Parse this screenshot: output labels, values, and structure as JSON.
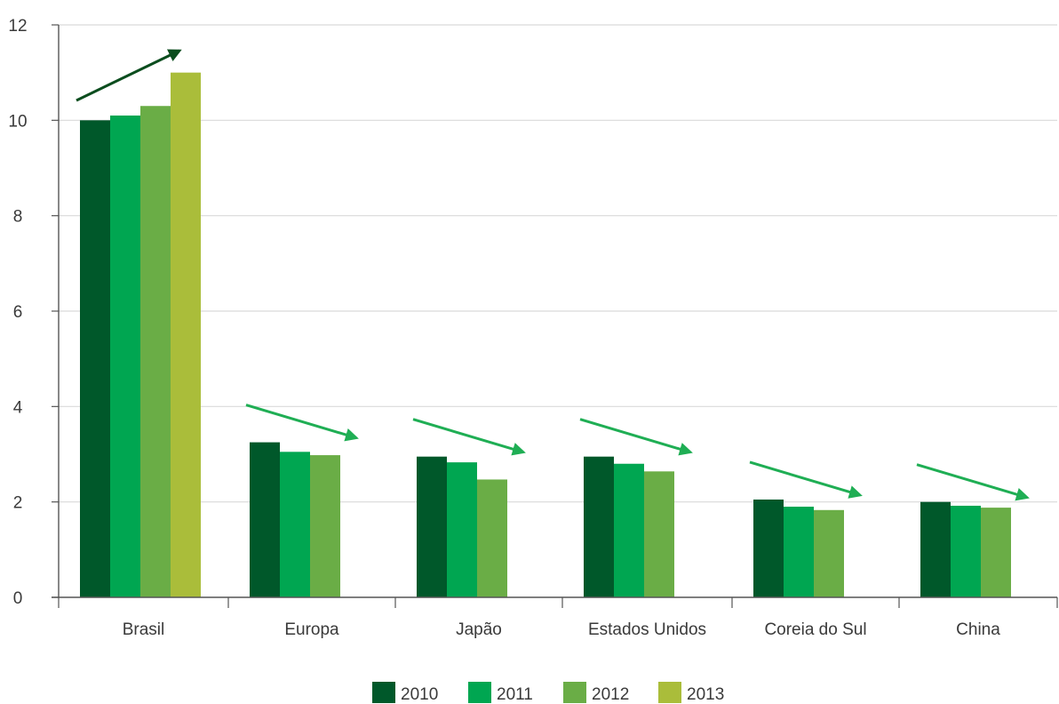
{
  "chart_data": {
    "type": "bar",
    "categories": [
      "Brasil",
      "Europa",
      "Japão",
      "Estados Unidos",
      "Coreia do Sul",
      "China"
    ],
    "series": [
      {
        "name": "2010",
        "color": "#00582a",
        "values": [
          10.0,
          3.25,
          2.95,
          2.95,
          2.05,
          2.0
        ]
      },
      {
        "name": "2011",
        "color": "#00a651",
        "values": [
          10.1,
          3.05,
          2.83,
          2.8,
          1.9,
          1.92
        ]
      },
      {
        "name": "2012",
        "color": "#6aad46",
        "values": [
          10.3,
          2.98,
          2.47,
          2.64,
          1.83,
          1.88
        ]
      },
      {
        "name": "2013",
        "color": "#aabd3a",
        "values": [
          11.0,
          null,
          null,
          null,
          null,
          null
        ]
      }
    ],
    "ylim": [
      0,
      12
    ],
    "yticks": [
      "0",
      "2",
      "4",
      "6",
      "8",
      "10",
      "12"
    ],
    "grid": true,
    "legend_position": "bottom-center",
    "trend_arrows": [
      {
        "category": "Brasil",
        "direction": "up",
        "color": "#0b4d1e"
      },
      {
        "category": "Europa",
        "direction": "down",
        "color": "#1fae54"
      },
      {
        "category": "Japão",
        "direction": "down",
        "color": "#1fae54"
      },
      {
        "category": "Estados Unidos",
        "direction": "down",
        "color": "#1fae54"
      },
      {
        "category": "Coreia do Sul",
        "direction": "down",
        "color": "#1fae54"
      },
      {
        "category": "China",
        "direction": "down",
        "color": "#1fae54"
      }
    ]
  }
}
